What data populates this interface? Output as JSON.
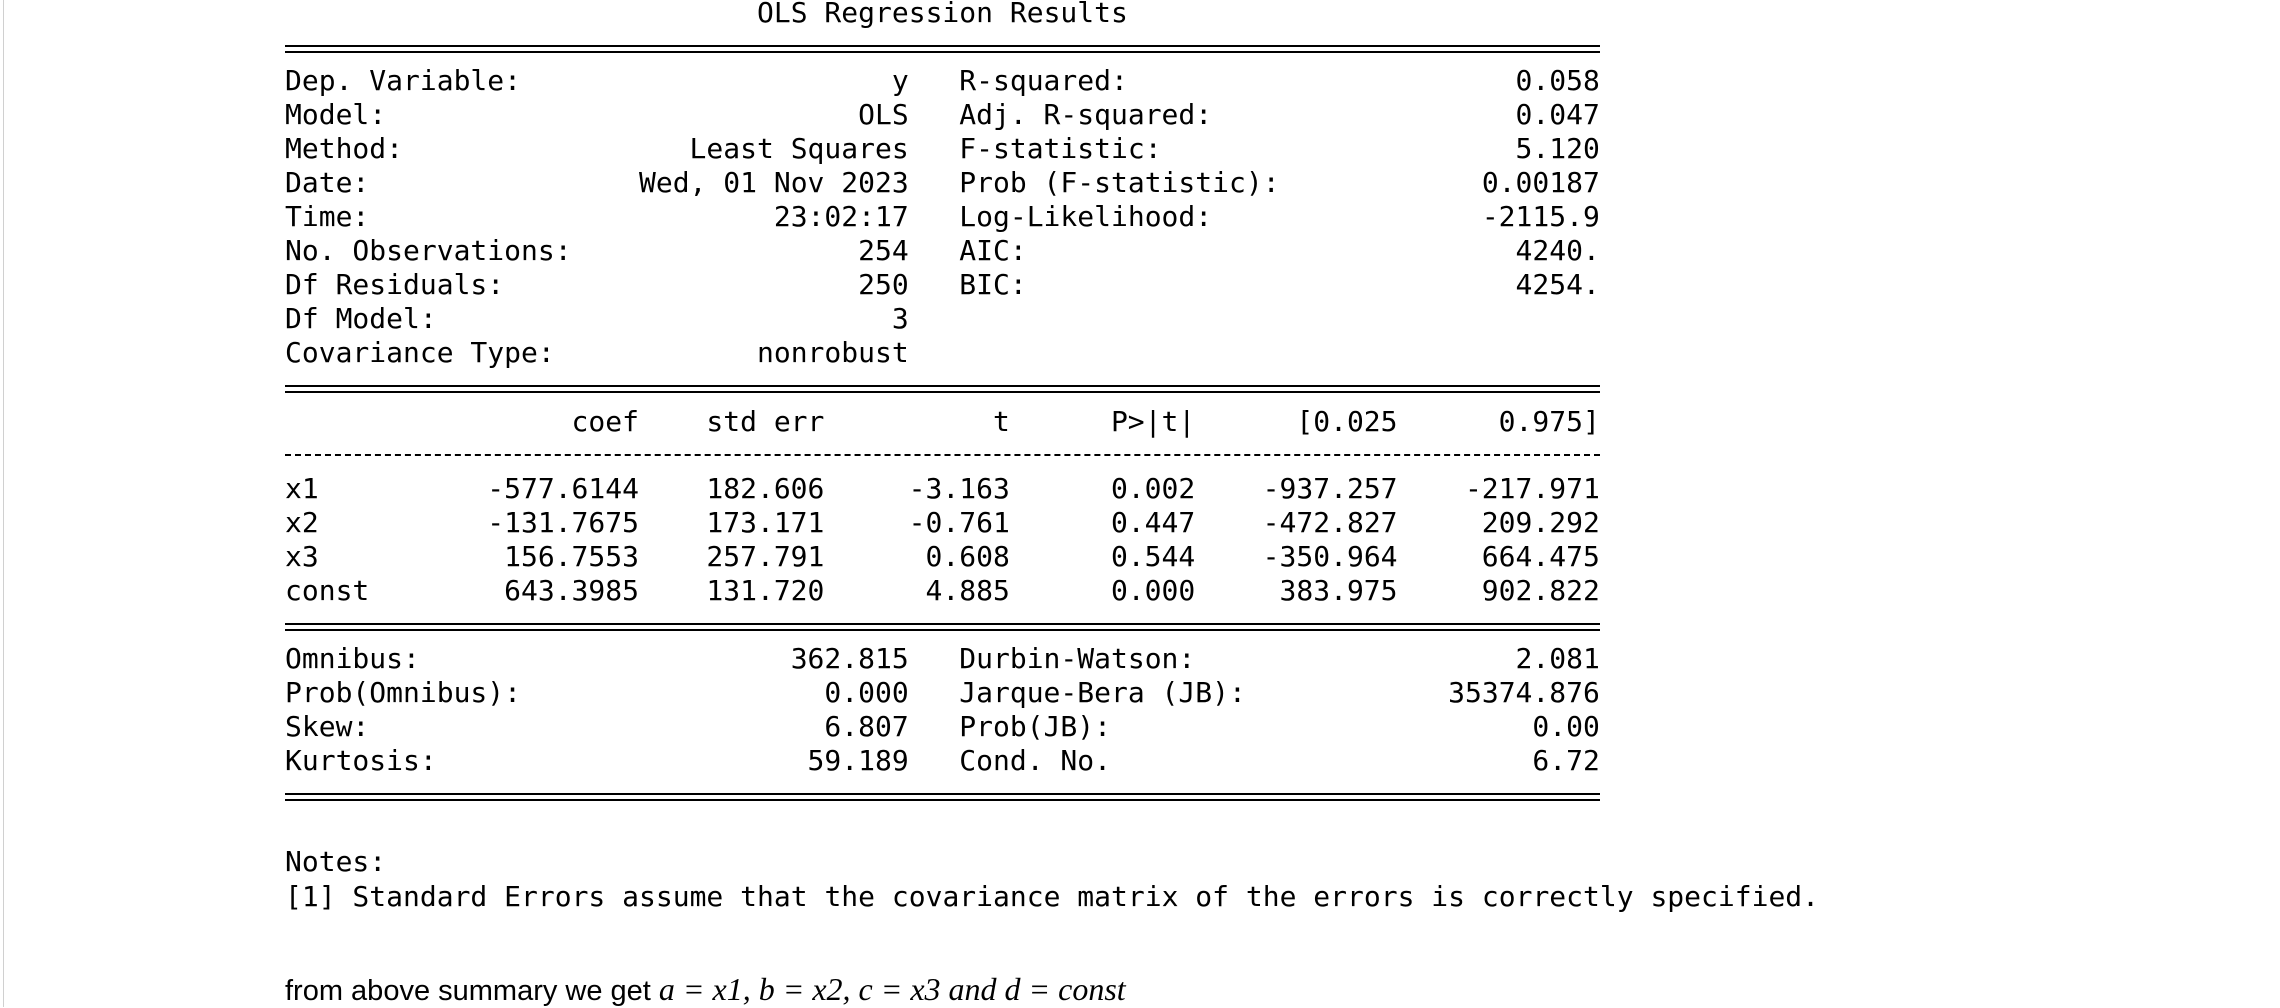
{
  "title": "OLS Regression Results",
  "top": {
    "rows": [
      [
        "Dep. Variable:",
        "y",
        "R-squared:",
        "0.058"
      ],
      [
        "Model:",
        "OLS",
        "Adj. R-squared:",
        "0.047"
      ],
      [
        "Method:",
        "Least Squares",
        "F-statistic:",
        "5.120"
      ],
      [
        "Date:",
        "Wed, 01 Nov 2023",
        "Prob (F-statistic):",
        "0.00187"
      ],
      [
        "Time:",
        "23:02:17",
        "Log-Likelihood:",
        "-2115.9"
      ],
      [
        "No. Observations:",
        "254",
        "AIC:",
        "4240."
      ],
      [
        "Df Residuals:",
        "250",
        "BIC:",
        "4254."
      ],
      [
        "Df Model:",
        "3"
      ],
      [
        "Covariance Type:",
        "nonrobust"
      ]
    ]
  },
  "coef_table": {
    "header": [
      "coef",
      "std err",
      "t",
      "P>|t|",
      "[0.025",
      "0.975]"
    ],
    "rows": [
      [
        "x1",
        "-577.6144",
        "182.606",
        "-3.163",
        "0.002",
        "-937.257",
        "-217.971"
      ],
      [
        "x2",
        "-131.7675",
        "173.171",
        "-0.761",
        "0.447",
        "-472.827",
        "209.292"
      ],
      [
        "x3",
        "156.7553",
        "257.791",
        "0.608",
        "0.544",
        "-350.964",
        "664.475"
      ],
      [
        "const",
        "643.3985",
        "131.720",
        "4.885",
        "0.000",
        "383.975",
        "902.822"
      ]
    ]
  },
  "bottom": {
    "rows": [
      [
        "Omnibus:",
        "362.815",
        "Durbin-Watson:",
        "2.081"
      ],
      [
        "Prob(Omnibus):",
        "0.000",
        "Jarque-Bera (JB):",
        "35374.876"
      ],
      [
        "Skew:",
        "6.807",
        "Prob(JB):",
        "0.00"
      ],
      [
        "Kurtosis:",
        "59.189",
        "Cond. No.",
        "6.72"
      ]
    ]
  },
  "notes": {
    "heading": "Notes:",
    "lines": [
      "[1] Standard Errors assume that the covariance matrix of the errors is correctly specified."
    ]
  },
  "summary": {
    "text": "from above summary we get",
    "math": "a = x1, b = x2, c = x3 and d = const"
  }
}
